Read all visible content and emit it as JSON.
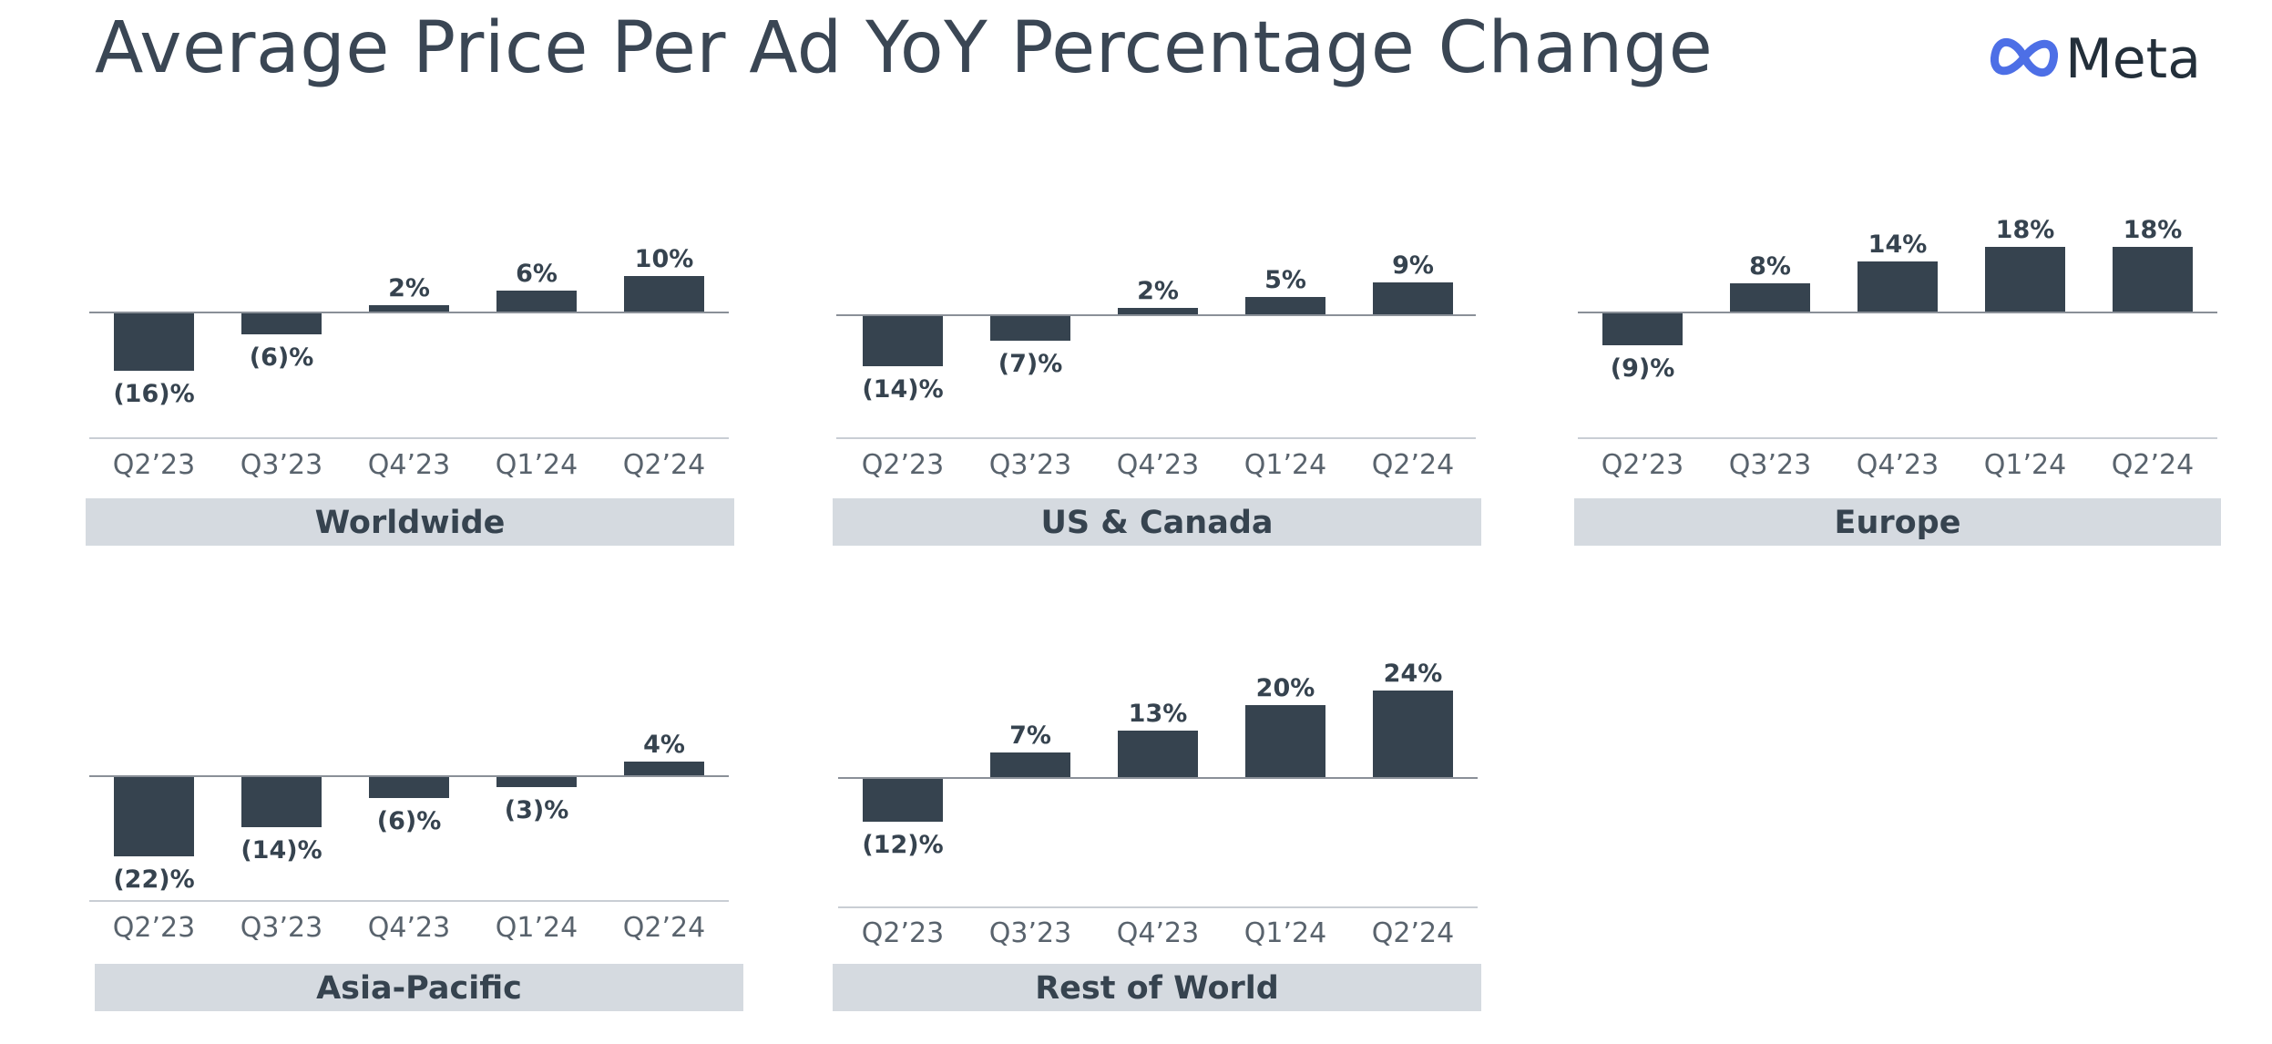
{
  "title": "Average Price Per Ad YoY Percentage Change",
  "brand": {
    "name": "Meta",
    "logo_color": "#4d6fe6"
  },
  "colors": {
    "bar": "#36434f",
    "band": "#d5dae0",
    "axis": "#8a9098",
    "text": "#36434f"
  },
  "chart_data": [
    {
      "type": "bar",
      "title": "Worldwide",
      "categories": [
        "Q2’23",
        "Q3’23",
        "Q4’23",
        "Q1’24",
        "Q2’24"
      ],
      "values": [
        -16,
        -6,
        2,
        6,
        10
      ],
      "labels": [
        "(16)%",
        "(6)%",
        "2%",
        "6%",
        "10%"
      ],
      "unit": "%"
    },
    {
      "type": "bar",
      "title": "US & Canada",
      "categories": [
        "Q2’23",
        "Q3’23",
        "Q4’23",
        "Q1’24",
        "Q2’24"
      ],
      "values": [
        -14,
        -7,
        2,
        5,
        9
      ],
      "labels": [
        "(14)%",
        "(7)%",
        "2%",
        "5%",
        "9%"
      ],
      "unit": "%"
    },
    {
      "type": "bar",
      "title": "Europe",
      "categories": [
        "Q2’23",
        "Q3’23",
        "Q4’23",
        "Q1’24",
        "Q2’24"
      ],
      "values": [
        -9,
        8,
        14,
        18,
        18
      ],
      "labels": [
        "(9)%",
        "8%",
        "14%",
        "18%",
        "18%"
      ],
      "unit": "%"
    },
    {
      "type": "bar",
      "title": "Asia-Pacific",
      "categories": [
        "Q2’23",
        "Q3’23",
        "Q4’23",
        "Q1’24",
        "Q2’24"
      ],
      "values": [
        -22,
        -14,
        -6,
        -3,
        4
      ],
      "labels": [
        "(22)%",
        "(14)%",
        "(6)%",
        "(3)%",
        "4%"
      ],
      "unit": "%"
    },
    {
      "type": "bar",
      "title": "Rest of World",
      "categories": [
        "Q2’23",
        "Q3’23",
        "Q4’23",
        "Q1’24",
        "Q2’24"
      ],
      "values": [
        -12,
        7,
        13,
        20,
        24
      ],
      "labels": [
        "(12)%",
        "7%",
        "13%",
        "20%",
        "24%"
      ],
      "unit": "%"
    }
  ]
}
